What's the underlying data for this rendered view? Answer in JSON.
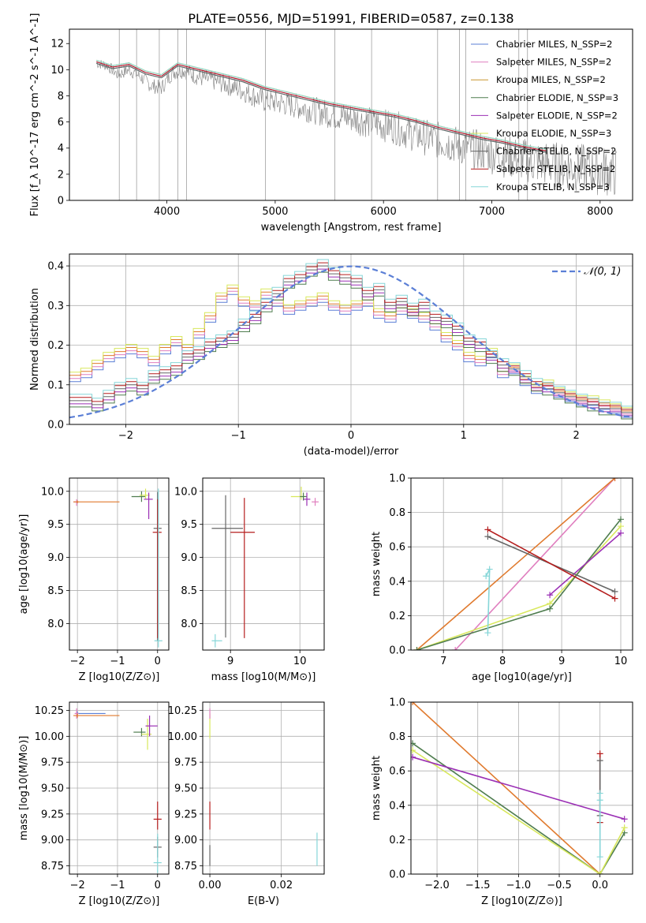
{
  "figure_title": "PLATE=0556, MJD=51991, FIBERID=0587, z=0.138",
  "series_colors": {
    "chabrier_miles": "#5b7fd6",
    "salpeter_miles": "#e07fbf",
    "kroupa_miles": "#c8962e",
    "chabrier_elodie": "#4f7d4f",
    "salpeter_elodie": "#9b30b5",
    "kroupa_elodie": "#d8e85c",
    "chabrier_stelib": "#666666",
    "salpeter_stelib": "#b51d1d",
    "kroupa_stelib": "#86d6d8",
    "data": "#808080",
    "normal": "#5b7fd6",
    "orange": "#e07a2e"
  },
  "chart_data": [
    {
      "id": "spectrum",
      "type": "line",
      "title": "PLATE=0556, MJD=51991, FIBERID=0587, z=0.138",
      "xlabel": "wavelength [Angstrom, rest frame]",
      "ylabel": "Flux [f_λ 10^-17 erg cm^-2 s^-1 A^-1]",
      "xlim": [
        3100,
        8300
      ],
      "ylim": [
        0,
        13.1
      ],
      "xticks": [
        "4000",
        "5000",
        "6000",
        "7000",
        "8000"
      ],
      "yticks": [
        "0",
        "2",
        "4",
        "6",
        "8",
        "10",
        "12"
      ],
      "grid": false,
      "legend_position": "upper right",
      "legend": [
        "Chabrier MILES, N_SSP=2",
        "Salpeter MILES, N_SSP=2",
        "Kroupa MILES, N_SSP=2",
        "Chabrier ELODIE, N_SSP=3",
        "Salpeter ELODIE, N_SSP=2",
        "Kroupa ELODIE, N_SSP=3",
        "Chabrier STELIB, N_SSP=2",
        "Salpeter STELIB, N_SSP=2",
        "Kroupa STELIB, N_SSP=3"
      ],
      "data_series": {
        "name": "data",
        "x": [
          3350,
          3450,
          3550,
          3650,
          3750,
          3850,
          3950,
          4050,
          4150,
          4300,
          4500,
          4700,
          4900,
          5100,
          5300,
          5500,
          5700,
          5900,
          6100,
          6300,
          6500,
          6700,
          6900,
          7100,
          7300,
          7500,
          7700,
          7900,
          8100
        ],
        "y": [
          10.5,
          10.3,
          9.6,
          10.0,
          9.5,
          8.8,
          8.6,
          9.8,
          10.0,
          9.4,
          9.0,
          8.4,
          7.6,
          7.4,
          7.0,
          6.6,
          6.3,
          5.9,
          5.6,
          5.0,
          4.6,
          4.2,
          3.8,
          3.4,
          3.1,
          2.8,
          2.6,
          2.4,
          2.2
        ]
      },
      "model": {
        "x": [
          3350,
          3500,
          3650,
          3800,
          3950,
          4100,
          4300,
          4500,
          4700,
          4900,
          5100,
          5300,
          5500,
          5700,
          5900,
          6100,
          6300,
          6500,
          6700,
          6900,
          7100,
          7300,
          7500
        ],
        "y": [
          10.6,
          10.2,
          10.4,
          9.8,
          9.5,
          10.4,
          10.0,
          9.6,
          9.2,
          8.6,
          8.2,
          7.8,
          7.4,
          7.1,
          6.8,
          6.5,
          6.1,
          5.6,
          5.2,
          4.8,
          4.5,
          4.1,
          3.8
        ]
      }
    },
    {
      "id": "residuals",
      "type": "histogram",
      "xlabel": "(data-model)/error",
      "ylabel": "Normed distribution",
      "xlim": [
        -2.5,
        2.5
      ],
      "ylim": [
        0,
        0.43
      ],
      "xticks": [
        "−2",
        "−1",
        "0",
        "1",
        "2"
      ],
      "yticks": [
        "0.0",
        "0.1",
        "0.2",
        "0.3",
        "0.4"
      ],
      "grid": true,
      "legend_position": "upper right",
      "legend": [
        "𝒩(0, 1)"
      ],
      "bin_edges_start": -2.5,
      "bin_width": 0.1,
      "group_A": {
        "members": [
          "Chabrier MILES",
          "Salpeter MILES",
          "Kroupa MILES",
          "Kroupa ELODIE"
        ],
        "values": [
          0.12,
          0.13,
          0.15,
          0.17,
          0.18,
          0.19,
          0.18,
          0.16,
          0.19,
          0.21,
          0.19,
          0.23,
          0.27,
          0.32,
          0.34,
          0.31,
          0.3,
          0.33,
          0.31,
          0.29,
          0.3,
          0.31,
          0.32,
          0.3,
          0.29,
          0.3,
          0.31,
          0.28,
          0.27,
          0.29,
          0.28,
          0.27,
          0.25,
          0.22,
          0.2,
          0.17,
          0.16,
          0.18,
          0.13,
          0.14,
          0.11,
          0.09,
          0.1,
          0.08,
          0.07,
          0.06,
          0.06,
          0.05,
          0.04,
          0.03
        ]
      },
      "group_B": {
        "members": [
          "Chabrier ELODIE",
          "Salpeter ELODIE",
          "Chabrier STELIB",
          "Salpeter STELIB",
          "Kroupa STELIB"
        ],
        "values": [
          0.06,
          0.06,
          0.05,
          0.07,
          0.09,
          0.1,
          0.09,
          0.12,
          0.13,
          0.14,
          0.17,
          0.18,
          0.2,
          0.21,
          0.22,
          0.25,
          0.27,
          0.3,
          0.33,
          0.36,
          0.37,
          0.39,
          0.4,
          0.38,
          0.37,
          0.36,
          0.33,
          0.34,
          0.3,
          0.31,
          0.29,
          0.3,
          0.27,
          0.26,
          0.24,
          0.21,
          0.2,
          0.17,
          0.15,
          0.14,
          0.12,
          0.1,
          0.09,
          0.08,
          0.07,
          0.06,
          0.05,
          0.04,
          0.04,
          0.03
        ]
      },
      "normal_curve": {
        "name": "𝒩(0, 1)",
        "mu": 0,
        "sigma": 1
      }
    },
    {
      "id": "age_vs_Z",
      "type": "errorbar",
      "xlabel": "Z [log10(Z/Z⊙)]",
      "ylabel": "age  [log10(age/yr)]",
      "xlim": [
        -2.2,
        0.28
      ],
      "ylim": [
        7.6,
        10.2
      ],
      "xticks": [
        "−2",
        "−1",
        "0"
      ],
      "yticks": [
        "8.0",
        "8.5",
        "9.0",
        "9.5",
        "10.0"
      ],
      "grid": true,
      "points": [
        {
          "series": "salpeter_miles",
          "x": -2.02,
          "y": 9.84,
          "xerr": [
            0.08,
            0.05
          ],
          "yerr": [
            0.06,
            0.04
          ]
        },
        {
          "series": "orange",
          "x": -2.0,
          "y": 9.84,
          "xerr": [
            0.1,
            1.05
          ],
          "yerr": [
            0.02,
            0.02
          ]
        },
        {
          "series": "chabrier_elodie",
          "x": -0.4,
          "y": 9.92,
          "xerr": [
            0.25,
            0.1
          ],
          "yerr": [
            0.08,
            0.08
          ]
        },
        {
          "series": "kroupa_elodie",
          "x": -0.3,
          "y": 9.94,
          "xerr": [
            0.15,
            0.1
          ],
          "yerr": [
            0.05,
            0.1
          ]
        },
        {
          "series": "salpeter_elodie",
          "x": -0.22,
          "y": 9.88,
          "xerr": [
            0.12,
            0.1
          ],
          "yerr": [
            0.3,
            0.1
          ]
        },
        {
          "series": "chabrier_stelib",
          "x": 0.0,
          "y": 9.44,
          "xerr": [
            0.1,
            0.1
          ],
          "yerr": [
            1.7,
            0.55
          ]
        },
        {
          "series": "salpeter_stelib",
          "x": 0.0,
          "y": 9.38,
          "xerr": [
            0.12,
            0.1
          ],
          "yerr": [
            1.6,
            0.5
          ]
        },
        {
          "series": "kroupa_stelib",
          "x": 0.02,
          "y": 7.74,
          "xerr": [
            0.1,
            0.1
          ],
          "yerr": [
            0.1,
            2.3
          ]
        }
      ]
    },
    {
      "id": "age_vs_mass",
      "type": "errorbar",
      "xlabel": "mass [log10(M/M⊙)]",
      "ylabel": "",
      "xlim": [
        8.6,
        10.35
      ],
      "ylim": [
        7.6,
        10.2
      ],
      "xticks": [
        "9",
        "10"
      ],
      "yticks": [
        "8.0",
        "8.5",
        "9.0",
        "9.5",
        "10.0"
      ],
      "grid": true,
      "points": [
        {
          "series": "kroupa_stelib",
          "x": 8.78,
          "y": 7.74,
          "xerr": [
            0.05,
            0.1
          ],
          "yerr": [
            0.1,
            0.1
          ]
        },
        {
          "series": "chabrier_stelib",
          "x": 8.93,
          "y": 9.44,
          "xerr": [
            0.2,
            0.25
          ],
          "yerr": [
            1.65,
            0.5
          ]
        },
        {
          "series": "salpeter_stelib",
          "x": 9.2,
          "y": 9.38,
          "xerr": [
            0.2,
            0.15
          ],
          "yerr": [
            1.6,
            0.52
          ]
        },
        {
          "series": "kroupa_elodie",
          "x": 10.02,
          "y": 9.92,
          "xerr": [
            0.15,
            0.05
          ],
          "yerr": [
            0.05,
            0.15
          ]
        },
        {
          "series": "chabrier_elodie",
          "x": 10.05,
          "y": 9.92,
          "xerr": [
            0.05,
            0.05
          ],
          "yerr": [
            0.06,
            0.06
          ]
        },
        {
          "series": "salpeter_elodie",
          "x": 10.1,
          "y": 9.88,
          "xerr": [
            0.05,
            0.05
          ],
          "yerr": [
            0.1,
            0.1
          ]
        },
        {
          "series": "salpeter_miles",
          "x": 10.22,
          "y": 9.84,
          "xerr": [
            0.05,
            0.05
          ],
          "yerr": [
            0.06,
            0.06
          ]
        }
      ]
    },
    {
      "id": "weight_vs_age",
      "type": "line",
      "xlabel": "age  [log10(age/yr)]",
      "ylabel": "mass weight",
      "xlim": [
        6.45,
        10.2
      ],
      "ylim": [
        0,
        1
      ],
      "xticks": [
        "7",
        "8",
        "9",
        "10"
      ],
      "yticks": [
        "0.0",
        "0.2",
        "0.4",
        "0.6",
        "0.8",
        "1.0"
      ],
      "grid": true,
      "series": [
        {
          "key": "salpeter_miles",
          "x": [
            7.2,
            9.9
          ],
          "y": [
            0.0,
            1.0
          ]
        },
        {
          "key": "orange",
          "x": [
            6.55,
            9.9
          ],
          "y": [
            0.0,
            1.0
          ]
        },
        {
          "key": "kroupa_elodie",
          "x": [
            6.55,
            8.8,
            10.0
          ],
          "y": [
            0.0,
            0.27,
            0.72
          ]
        },
        {
          "key": "chabrier_elodie",
          "x": [
            6.55,
            8.8,
            10.0
          ],
          "y": [
            0.0,
            0.24,
            0.76
          ]
        },
        {
          "key": "salpeter_elodie",
          "x": [
            8.8,
            10.0
          ],
          "y": [
            0.32,
            0.68
          ]
        },
        {
          "key": "chabrier_stelib",
          "x": [
            7.75,
            9.9
          ],
          "y": [
            0.66,
            0.34
          ]
        },
        {
          "key": "salpeter_stelib",
          "x": [
            7.75,
            9.9
          ],
          "y": [
            0.7,
            0.3
          ]
        },
        {
          "key": "kroupa_stelib",
          "x": [
            7.72,
            7.78,
            7.75
          ],
          "y": [
            0.43,
            0.47,
            0.1
          ]
        }
      ]
    },
    {
      "id": "mass_vs_Z",
      "type": "errorbar",
      "xlabel": "Z [log10(Z/Z⊙)]",
      "ylabel": "mass [log10(M/M⊙)]",
      "xlim": [
        -2.2,
        0.28
      ],
      "ylim": [
        8.67,
        10.33
      ],
      "xticks": [
        "−2",
        "−1",
        "0"
      ],
      "yticks": [
        "8.75",
        "9.00",
        "9.25",
        "9.50",
        "9.75",
        "10.00",
        "10.25"
      ],
      "grid": true,
      "points": [
        {
          "series": "chabrier_miles",
          "x": -2.0,
          "y": 10.22,
          "xerr": [
            0.05,
            0.7
          ],
          "yerr": [
            0.02,
            0.02
          ]
        },
        {
          "series": "salpeter_miles",
          "x": -2.02,
          "y": 10.22,
          "xerr": [
            0.05,
            0.05
          ],
          "yerr": [
            0.05,
            0.05
          ]
        },
        {
          "series": "orange",
          "x": -2.0,
          "y": 10.2,
          "xerr": [
            0.1,
            1.05
          ],
          "yerr": [
            0.02,
            0.02
          ]
        },
        {
          "series": "chabrier_elodie",
          "x": -0.4,
          "y": 10.04,
          "xerr": [
            0.2,
            0.1
          ],
          "yerr": [
            0.04,
            0.04
          ]
        },
        {
          "series": "kroupa_elodie",
          "x": -0.25,
          "y": 10.02,
          "xerr": [
            0.15,
            0.1
          ],
          "yerr": [
            0.15,
            0.15
          ]
        },
        {
          "series": "salpeter_elodie",
          "x": -0.2,
          "y": 10.1,
          "xerr": [
            0.1,
            0.2
          ],
          "yerr": [
            0.1,
            0.1
          ]
        },
        {
          "series": "salpeter_stelib",
          "x": 0.0,
          "y": 9.2,
          "xerr": [
            0.1,
            0.1
          ],
          "yerr": [
            0.1,
            0.17
          ]
        },
        {
          "series": "chabrier_stelib",
          "x": 0.0,
          "y": 8.93,
          "xerr": [
            0.1,
            0.1
          ],
          "yerr": [
            0.1,
            0.1
          ]
        },
        {
          "series": "kroupa_stelib",
          "x": 0.0,
          "y": 8.78,
          "xerr": [
            0.1,
            0.1
          ],
          "yerr": [
            0.1,
            0.28
          ]
        }
      ]
    },
    {
      "id": "mass_vs_ebv",
      "type": "errorbar",
      "xlabel": "E(B-V)",
      "ylabel": "",
      "xlim": [
        -0.002,
        0.032
      ],
      "ylim": [
        8.67,
        10.33
      ],
      "xticks": [
        "0.00",
        "0.02"
      ],
      "yticks": [
        "8.75",
        "9.00",
        "9.25",
        "9.50",
        "9.75",
        "10.00",
        "10.25"
      ],
      "grid": true,
      "points": [
        {
          "series": "kroupa_elodie",
          "x": 0.0,
          "y": 10.1,
          "xerr": [
            0.0,
            0.0
          ],
          "yerr": [
            0.12,
            0.12
          ]
        },
        {
          "series": "salpeter_miles",
          "x": 0.0,
          "y": 10.22,
          "xerr": [
            0.0,
            0.0
          ],
          "yerr": [
            0.05,
            0.05
          ]
        },
        {
          "series": "salpeter_stelib",
          "x": 0.0,
          "y": 9.2,
          "xerr": [
            0.0,
            0.0
          ],
          "yerr": [
            0.1,
            0.17
          ]
        },
        {
          "series": "chabrier_stelib",
          "x": 0.0,
          "y": 8.85,
          "xerr": [
            0.0,
            0.0
          ],
          "yerr": [
            0.1,
            0.1
          ]
        },
        {
          "series": "kroupa_stelib",
          "x": 0.03,
          "y": 8.9,
          "xerr": [
            0.0,
            0.0
          ],
          "yerr": [
            0.15,
            0.17
          ]
        }
      ]
    },
    {
      "id": "weight_vs_Z",
      "type": "line",
      "xlabel": "Z [log10(Z/Z⊙)]",
      "ylabel": "mass weight",
      "xlim": [
        -2.32,
        0.4
      ],
      "ylim": [
        0,
        1
      ],
      "xticks": [
        "−2.0",
        "−1.5",
        "−1.0",
        "−0.5",
        "0.0"
      ],
      "yticks": [
        "0.0",
        "0.2",
        "0.4",
        "0.6",
        "0.8",
        "1.0"
      ],
      "grid": true,
      "series": [
        {
          "key": "orange",
          "x": [
            -2.3,
            0.0
          ],
          "y": [
            1.0,
            0.0
          ]
        },
        {
          "key": "chabrier_elodie",
          "x": [
            -2.3,
            0.0,
            0.3
          ],
          "y": [
            0.76,
            0.0,
            0.24
          ]
        },
        {
          "key": "kroupa_elodie",
          "x": [
            -2.3,
            0.0,
            0.3
          ],
          "y": [
            0.72,
            0.0,
            0.27
          ]
        },
        {
          "key": "salpeter_elodie",
          "x": [
            -2.3,
            0.3
          ],
          "y": [
            0.68,
            0.32
          ]
        },
        {
          "key": "salpeter_stelib",
          "x": [
            0.0,
            0.0
          ],
          "y": [
            0.7,
            0.3
          ]
        },
        {
          "key": "chabrier_stelib",
          "x": [
            0.0,
            0.0
          ],
          "y": [
            0.66,
            0.34
          ]
        },
        {
          "key": "kroupa_stelib",
          "x": [
            0.0,
            0.0,
            0.0
          ],
          "y": [
            0.47,
            0.43,
            0.1
          ]
        }
      ]
    }
  ]
}
